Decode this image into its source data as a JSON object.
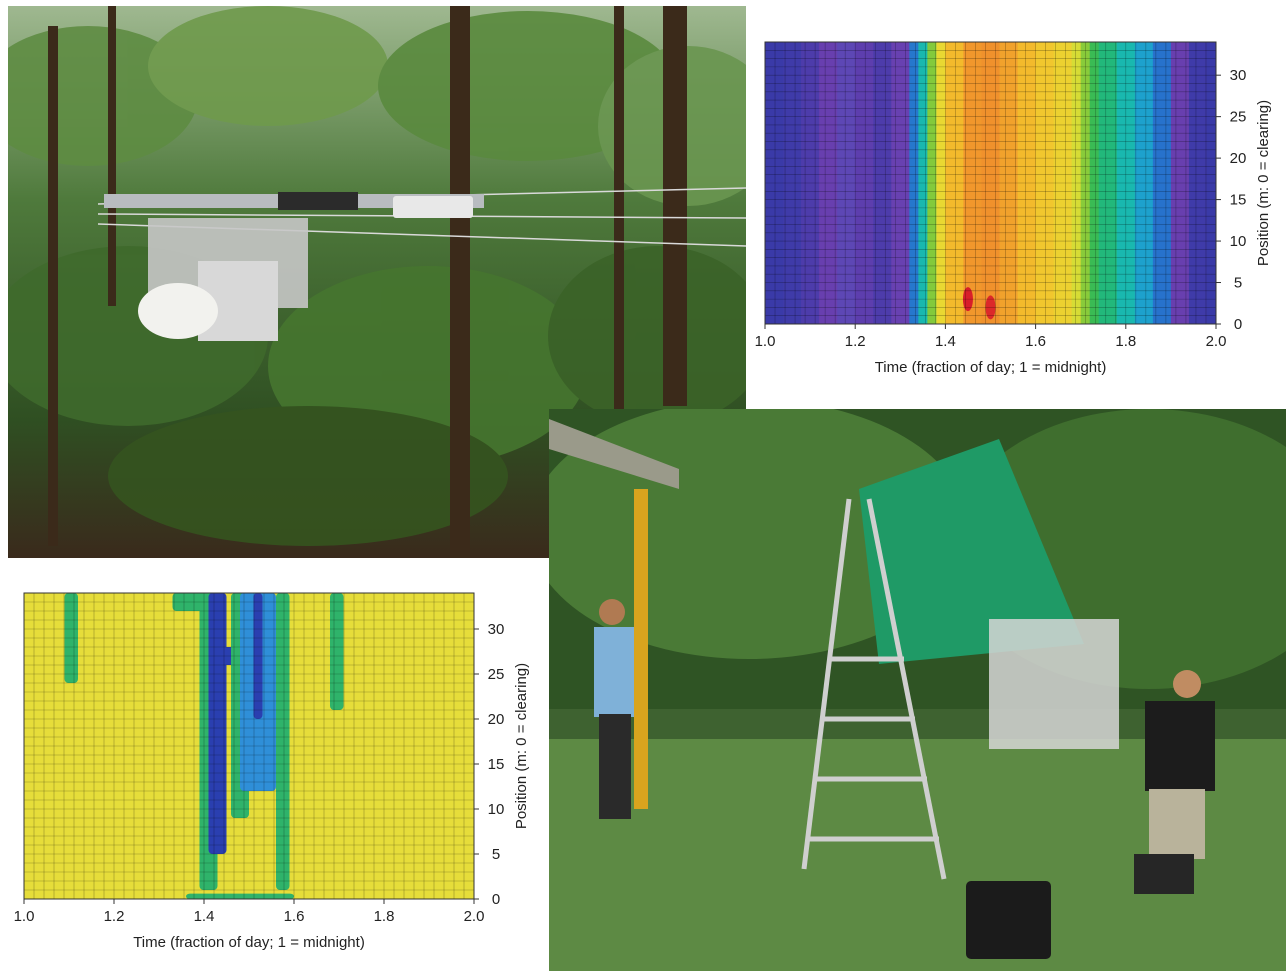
{
  "chart_data": [
    {
      "type": "heatmap",
      "title": "",
      "xlabel": "Time (fraction of day; 1 = midnight)",
      "ylabel": "Position (m: 0 = clearing)",
      "xlim": [
        1.0,
        2.0
      ],
      "ylim": [
        0,
        34
      ],
      "x_ticks": [
        "1.0",
        "1.2",
        "1.4",
        "1.6",
        "1.8",
        "2.0"
      ],
      "y_ticks": [
        "0",
        "5",
        "10",
        "15",
        "20",
        "25",
        "30"
      ],
      "grid": true,
      "colormap": [
        "#3a3aa8",
        "#6b3fb0",
        "#2a64c8",
        "#1e9ad6",
        "#19b8b0",
        "#28b85a",
        "#8fcc38",
        "#e6e034",
        "#f3c12c",
        "#f08c2c",
        "#e84a2a",
        "#d81f2a"
      ],
      "x_columns": [
        1.0,
        1.04,
        1.08,
        1.12,
        1.16,
        1.2,
        1.24,
        1.28,
        1.32,
        1.34,
        1.36,
        1.38,
        1.4,
        1.44,
        1.48,
        1.52,
        1.56,
        1.6,
        1.64,
        1.68,
        1.7,
        1.72,
        1.74,
        1.78,
        1.82,
        1.86,
        1.9,
        1.94,
        1.98,
        2.0
      ],
      "column_levels": [
        0.0,
        0.0,
        0.02,
        0.05,
        0.12,
        0.1,
        0.03,
        0.04,
        0.15,
        0.28,
        0.45,
        0.62,
        0.7,
        0.78,
        0.82,
        0.8,
        0.76,
        0.72,
        0.7,
        0.66,
        0.58,
        0.5,
        0.44,
        0.4,
        0.33,
        0.26,
        0.15,
        0.02,
        0.0,
        0.0
      ],
      "hotspots": [
        {
          "x": 1.45,
          "y": 3,
          "level": 1.0
        },
        {
          "x": 1.5,
          "y": 2,
          "level": 0.98
        }
      ]
    },
    {
      "type": "heatmap",
      "title": "",
      "xlabel": "Time (fraction of day; 1 = midnight)",
      "ylabel": "Position (m: 0 = clearing)",
      "xlim": [
        1.0,
        2.0
      ],
      "ylim": [
        0,
        34
      ],
      "x_ticks": [
        "1.0",
        "1.2",
        "1.4",
        "1.6",
        "1.8",
        "2.0"
      ],
      "y_ticks": [
        "0",
        "5",
        "10",
        "15",
        "20",
        "25",
        "30"
      ],
      "grid": true,
      "background_color": "#e6dd3a",
      "features": [
        {
          "kind": "green",
          "x0": 1.09,
          "x1": 1.12,
          "y0": 24,
          "y1": 34
        },
        {
          "kind": "green",
          "x0": 1.33,
          "x1": 1.4,
          "y0": 32,
          "y1": 34
        },
        {
          "kind": "green",
          "x0": 1.39,
          "x1": 1.43,
          "y0": 1,
          "y1": 34
        },
        {
          "kind": "blue",
          "x0": 1.41,
          "x1": 1.45,
          "y0": 5,
          "y1": 34
        },
        {
          "kind": "blue",
          "x0": 1.42,
          "x1": 1.48,
          "y0": 26,
          "y1": 28
        },
        {
          "kind": "green",
          "x0": 1.46,
          "x1": 1.5,
          "y0": 9,
          "y1": 34
        },
        {
          "kind": "lightblue",
          "x0": 1.48,
          "x1": 1.56,
          "y0": 12,
          "y1": 34
        },
        {
          "kind": "blue",
          "x0": 1.51,
          "x1": 1.53,
          "y0": 20,
          "y1": 34
        },
        {
          "kind": "green",
          "x0": 1.56,
          "x1": 1.59,
          "y0": 1,
          "y1": 34
        },
        {
          "kind": "green",
          "x0": 1.68,
          "x1": 1.71,
          "y0": 21,
          "y1": 34
        },
        {
          "kind": "green",
          "x0": 1.36,
          "x1": 1.6,
          "y0": 0,
          "y1": 0.6
        }
      ]
    }
  ]
}
